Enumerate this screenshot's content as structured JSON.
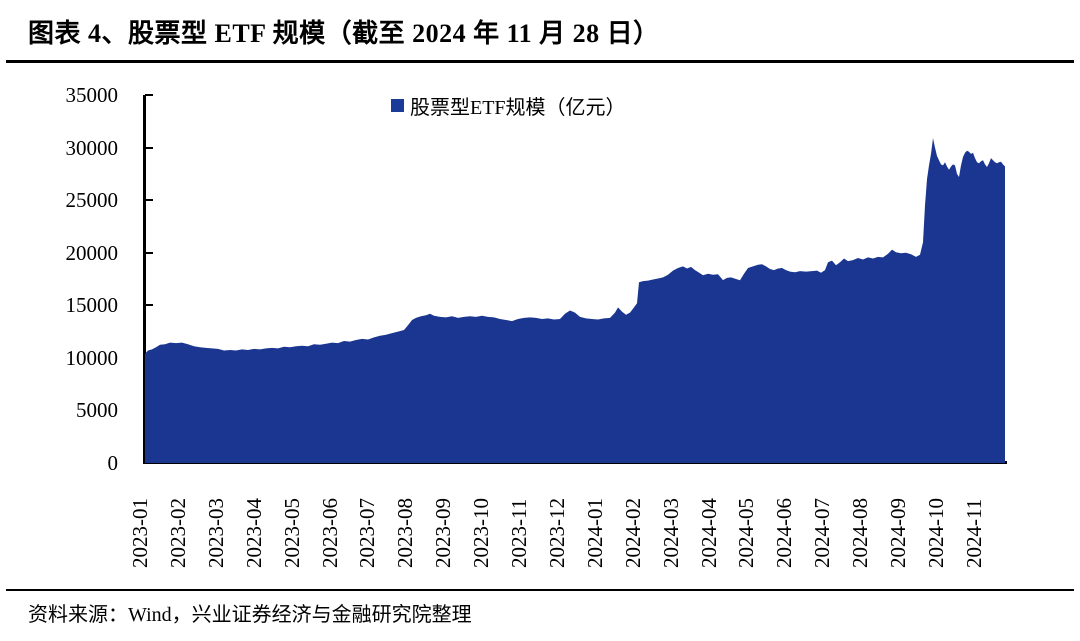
{
  "header": {
    "title": "图表 4、股票型 ETF 规模（截至 2024 年 11 月 28 日）"
  },
  "footer": {
    "source": "资料来源：Wind，兴业证券经济与金融研究院整理"
  },
  "colors": {
    "series_fill": "#1A3690",
    "legend_swatch": "#1B3B98",
    "axis": "#000000",
    "background": "#FFFFFF",
    "text": "#000000"
  },
  "chart_data": {
    "type": "area",
    "title": "股票型ETF规模（截至2024年11月28日）",
    "legend_label": "股票型ETF规模（亿元）",
    "legend_position": "top-center",
    "grid": "off",
    "unit": "亿元",
    "xlabel": "",
    "ylabel": "",
    "ylim": [
      0,
      35000
    ],
    "y_ticks": [
      0,
      5000,
      10000,
      15000,
      20000,
      25000,
      30000,
      35000
    ],
    "x_tick_labels": [
      "2023-01",
      "2023-02",
      "2023-03",
      "2023-04",
      "2023-05",
      "2023-06",
      "2023-07",
      "2023-08",
      "2023-09",
      "2023-10",
      "2023-11",
      "2023-12",
      "2024-01",
      "2024-02",
      "2024-03",
      "2024-04",
      "2024-05",
      "2024-06",
      "2024-07",
      "2024-08",
      "2024-09",
      "2024-10",
      "2024-11"
    ],
    "x_encoding": "fraction_of_x_axis_0_to_1_daily_series",
    "series": [
      {
        "name": "股票型ETF规模（亿元）",
        "points": [
          [
            0.0,
            10400
          ],
          [
            0.0035,
            10700
          ],
          [
            0.0081,
            10800
          ],
          [
            0.0128,
            11000
          ],
          [
            0.0174,
            11250
          ],
          [
            0.0233,
            11300
          ],
          [
            0.0291,
            11450
          ],
          [
            0.036,
            11400
          ],
          [
            0.043,
            11450
          ],
          [
            0.05,
            11300
          ],
          [
            0.057,
            11100
          ],
          [
            0.064,
            11000
          ],
          [
            0.0709,
            10950
          ],
          [
            0.0779,
            10900
          ],
          [
            0.0849,
            10850
          ],
          [
            0.0919,
            10700
          ],
          [
            0.0988,
            10750
          ],
          [
            0.1058,
            10700
          ],
          [
            0.1128,
            10800
          ],
          [
            0.1198,
            10750
          ],
          [
            0.1267,
            10850
          ],
          [
            0.1337,
            10800
          ],
          [
            0.1407,
            10900
          ],
          [
            0.1477,
            10950
          ],
          [
            0.1547,
            10900
          ],
          [
            0.1616,
            11050
          ],
          [
            0.1686,
            11000
          ],
          [
            0.1756,
            11100
          ],
          [
            0.1826,
            11150
          ],
          [
            0.1895,
            11100
          ],
          [
            0.1965,
            11300
          ],
          [
            0.2035,
            11250
          ],
          [
            0.2105,
            11350
          ],
          [
            0.2174,
            11450
          ],
          [
            0.2244,
            11400
          ],
          [
            0.2314,
            11600
          ],
          [
            0.2384,
            11550
          ],
          [
            0.2453,
            11700
          ],
          [
            0.2523,
            11800
          ],
          [
            0.2593,
            11750
          ],
          [
            0.2663,
            11950
          ],
          [
            0.2733,
            12100
          ],
          [
            0.2802,
            12200
          ],
          [
            0.2872,
            12350
          ],
          [
            0.2942,
            12500
          ],
          [
            0.3012,
            12650
          ],
          [
            0.3058,
            13100
          ],
          [
            0.3105,
            13600
          ],
          [
            0.3151,
            13800
          ],
          [
            0.3209,
            13950
          ],
          [
            0.3267,
            14050
          ],
          [
            0.3314,
            14200
          ],
          [
            0.336,
            14000
          ],
          [
            0.343,
            13900
          ],
          [
            0.35,
            13850
          ],
          [
            0.357,
            13950
          ],
          [
            0.364,
            13800
          ],
          [
            0.3709,
            13900
          ],
          [
            0.3779,
            13950
          ],
          [
            0.3849,
            13900
          ],
          [
            0.3919,
            14000
          ],
          [
            0.3988,
            13900
          ],
          [
            0.4058,
            13850
          ],
          [
            0.4128,
            13700
          ],
          [
            0.4198,
            13600
          ],
          [
            0.4267,
            13500
          ],
          [
            0.4337,
            13700
          ],
          [
            0.4407,
            13800
          ],
          [
            0.4477,
            13850
          ],
          [
            0.4547,
            13800
          ],
          [
            0.4616,
            13700
          ],
          [
            0.4686,
            13750
          ],
          [
            0.4756,
            13650
          ],
          [
            0.4826,
            13700
          ],
          [
            0.4884,
            14200
          ],
          [
            0.4942,
            14500
          ],
          [
            0.5,
            14300
          ],
          [
            0.5058,
            13900
          ],
          [
            0.5128,
            13750
          ],
          [
            0.5198,
            13700
          ],
          [
            0.5267,
            13650
          ],
          [
            0.5337,
            13750
          ],
          [
            0.5407,
            13800
          ],
          [
            0.5465,
            14300
          ],
          [
            0.55,
            14800
          ],
          [
            0.5547,
            14400
          ],
          [
            0.5593,
            14100
          ],
          [
            0.564,
            14300
          ],
          [
            0.5686,
            14800
          ],
          [
            0.5721,
            15200
          ],
          [
            0.5744,
            17200
          ],
          [
            0.5791,
            17300
          ],
          [
            0.5849,
            17350
          ],
          [
            0.5907,
            17450
          ],
          [
            0.5965,
            17550
          ],
          [
            0.6023,
            17650
          ],
          [
            0.6081,
            17900
          ],
          [
            0.614,
            18300
          ],
          [
            0.6198,
            18550
          ],
          [
            0.6256,
            18700
          ],
          [
            0.6302,
            18500
          ],
          [
            0.6349,
            18650
          ],
          [
            0.6395,
            18350
          ],
          [
            0.6453,
            18050
          ],
          [
            0.6488,
            17850
          ],
          [
            0.6547,
            18000
          ],
          [
            0.6605,
            17900
          ],
          [
            0.6663,
            17950
          ],
          [
            0.6721,
            17400
          ],
          [
            0.6767,
            17600
          ],
          [
            0.6814,
            17650
          ],
          [
            0.6872,
            17500
          ],
          [
            0.6919,
            17380
          ],
          [
            0.6965,
            18000
          ],
          [
            0.7012,
            18550
          ],
          [
            0.707,
            18700
          ],
          [
            0.7128,
            18850
          ],
          [
            0.7174,
            18900
          ],
          [
            0.7221,
            18700
          ],
          [
            0.7267,
            18450
          ],
          [
            0.7314,
            18350
          ],
          [
            0.736,
            18500
          ],
          [
            0.7407,
            18550
          ],
          [
            0.7453,
            18350
          ],
          [
            0.75,
            18200
          ],
          [
            0.7558,
            18150
          ],
          [
            0.7616,
            18250
          ],
          [
            0.7686,
            18200
          ],
          [
            0.7756,
            18250
          ],
          [
            0.7814,
            18300
          ],
          [
            0.786,
            18100
          ],
          [
            0.7907,
            18350
          ],
          [
            0.7942,
            19100
          ],
          [
            0.7988,
            19250
          ],
          [
            0.8035,
            18800
          ],
          [
            0.8081,
            19100
          ],
          [
            0.8128,
            19450
          ],
          [
            0.8174,
            19200
          ],
          [
            0.8233,
            19300
          ],
          [
            0.8291,
            19500
          ],
          [
            0.8349,
            19350
          ],
          [
            0.8407,
            19550
          ],
          [
            0.8465,
            19450
          ],
          [
            0.8523,
            19600
          ],
          [
            0.8581,
            19550
          ],
          [
            0.864,
            19900
          ],
          [
            0.8686,
            20300
          ],
          [
            0.8733,
            20050
          ],
          [
            0.8791,
            19950
          ],
          [
            0.8849,
            20000
          ],
          [
            0.8907,
            19850
          ],
          [
            0.8965,
            19600
          ],
          [
            0.9012,
            19800
          ],
          [
            0.9047,
            21000
          ],
          [
            0.907,
            24500
          ],
          [
            0.9093,
            27000
          ],
          [
            0.9116,
            28300
          ],
          [
            0.914,
            29400
          ],
          [
            0.9163,
            30900
          ],
          [
            0.9186,
            30000
          ],
          [
            0.9209,
            29200
          ],
          [
            0.9233,
            28800
          ],
          [
            0.9256,
            28400
          ],
          [
            0.9279,
            28300
          ],
          [
            0.9302,
            28600
          ],
          [
            0.9326,
            28200
          ],
          [
            0.9349,
            27900
          ],
          [
            0.9372,
            28200
          ],
          [
            0.9395,
            28400
          ],
          [
            0.9419,
            28300
          ],
          [
            0.9442,
            27500
          ],
          [
            0.9465,
            27200
          ],
          [
            0.9488,
            28300
          ],
          [
            0.9512,
            29100
          ],
          [
            0.9535,
            29500
          ],
          [
            0.9558,
            29700
          ],
          [
            0.9581,
            29600
          ],
          [
            0.9605,
            29400
          ],
          [
            0.9628,
            29500
          ],
          [
            0.9651,
            29000
          ],
          [
            0.9674,
            28600
          ],
          [
            0.9698,
            28500
          ],
          [
            0.9721,
            28700
          ],
          [
            0.9744,
            28800
          ],
          [
            0.9767,
            28400
          ],
          [
            0.9791,
            28150
          ],
          [
            0.9814,
            28500
          ],
          [
            0.9837,
            29000
          ],
          [
            0.986,
            28800
          ],
          [
            0.9884,
            28600
          ],
          [
            0.9907,
            28500
          ],
          [
            0.993,
            28600
          ],
          [
            0.9953,
            28650
          ],
          [
            0.9977,
            28400
          ],
          [
            1.0,
            28200
          ]
        ]
      }
    ]
  }
}
